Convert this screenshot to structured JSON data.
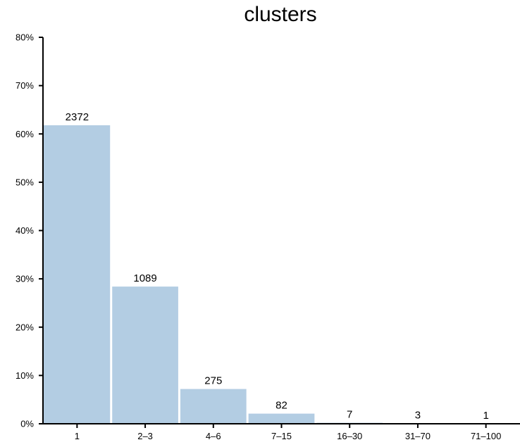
{
  "chart_data": {
    "type": "bar",
    "title": "clusters",
    "xlabel": "",
    "ylabel": "",
    "categories": [
      "1",
      "2–3",
      "4–6",
      "7–15",
      "16–30",
      "31–70",
      "71–100"
    ],
    "counts": [
      2372,
      1089,
      275,
      82,
      7,
      3,
      1
    ],
    "values": [
      61.8,
      28.4,
      7.2,
      2.1,
      0.2,
      0.08,
      0.03
    ],
    "value_unit": "percent",
    "data_labels": [
      "2372",
      "1089",
      "275",
      "82",
      "7",
      "3",
      "1"
    ],
    "ylim": [
      0,
      80
    ],
    "yticks": [
      0,
      10,
      20,
      30,
      40,
      50,
      60,
      70,
      80
    ],
    "ytick_labels": [
      "0%",
      "10%",
      "20%",
      "30%",
      "40%",
      "50%",
      "60%",
      "70%",
      "80%"
    ],
    "grid": false,
    "legend": "none",
    "bar_color": "#b3cde3",
    "axis_color": "#000000"
  }
}
